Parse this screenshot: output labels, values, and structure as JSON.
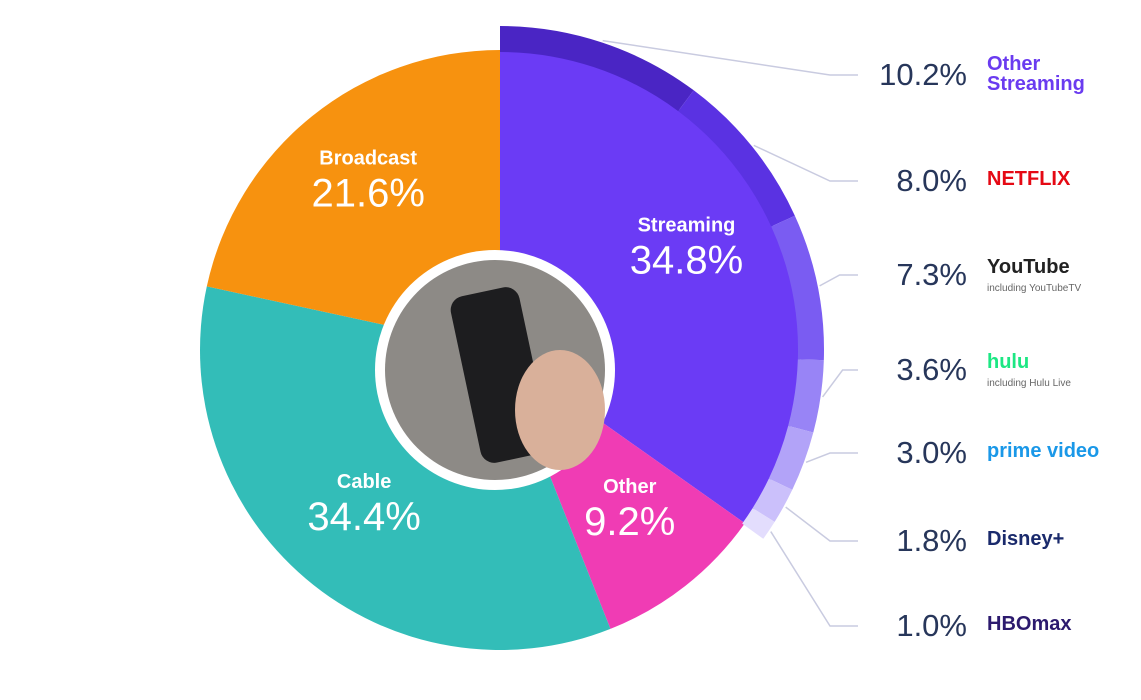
{
  "chart_data": {
    "type": "pie",
    "categories": [
      "Streaming",
      "Other",
      "Cable",
      "Broadcast"
    ],
    "values": [
      34.8,
      9.2,
      34.4,
      21.6
    ],
    "value_labels": [
      "34.8%",
      "9.2%",
      "34.4%",
      "21.6%"
    ],
    "colors": [
      "#6b3bf5",
      "#f03cb4",
      "#33bdb8",
      "#f7920f"
    ],
    "breakdown": {
      "parent": "Streaming",
      "categories": [
        "Other Streaming",
        "NETFLIX",
        "YouTube",
        "hulu",
        "prime video",
        "Disney+",
        "HBOmax"
      ],
      "sublabels": [
        null,
        null,
        "including YouTubeTV",
        "including Hulu Live",
        null,
        null,
        null
      ],
      "values": [
        10.2,
        8.0,
        7.3,
        3.6,
        3.0,
        1.8,
        1.0
      ],
      "value_labels": [
        "10.2%",
        "8.0%",
        "7.3%",
        "3.6%",
        "3.0%",
        "1.8%",
        "1.0%"
      ],
      "colors": [
        "#4a25c4",
        "#5a32e2",
        "#7a5cf2",
        "#9884f6",
        "#b2a3f8",
        "#cbc0fb",
        "#e3ddfd"
      ],
      "label_colors": [
        "#6a3bf0",
        "#e50914",
        "#222222",
        "#1ce783",
        "#1a98e8",
        "#1a2a6c",
        "#2c1a6e"
      ]
    }
  }
}
